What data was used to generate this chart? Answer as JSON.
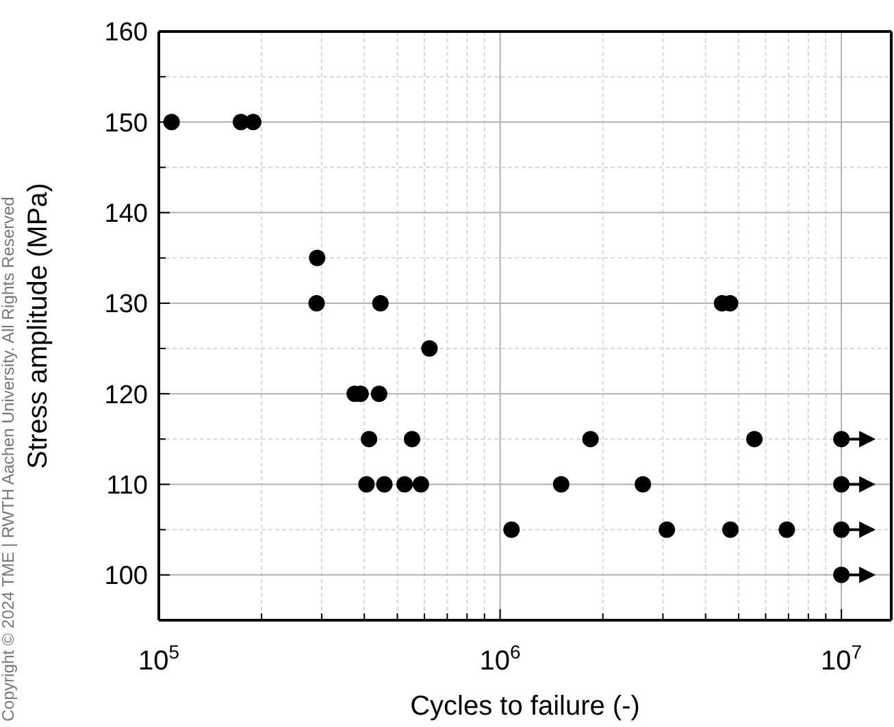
{
  "chart_data": {
    "type": "scatter",
    "xlabel": "Cycles to failure (-)",
    "ylabel": "Stress amplitude (MPa)",
    "annotations": [
      "Copyright © 2024 TME | RWTH Aachen University. All Rights Reserved"
    ],
    "log": "x",
    "grid": true,
    "marker": "circle",
    "xlim": [
      100000,
      14000000
    ],
    "ylim": [
      95,
      160
    ],
    "xticks": [
      {
        "value": 100000,
        "label": "10$^{5}$"
      },
      {
        "value": 200000,
        "label": null
      },
      {
        "value": 300000,
        "label": null
      },
      {
        "value": 400000,
        "label": null
      },
      {
        "value": 500000,
        "label": null
      },
      {
        "value": 600000,
        "label": null
      },
      {
        "value": 700000,
        "label": null
      },
      {
        "value": 800000,
        "label": null
      },
      {
        "value": 900000,
        "label": null
      },
      {
        "value": 1000000,
        "label": "10$^{6}$"
      },
      {
        "value": 2000000,
        "label": null
      },
      {
        "value": 3000000,
        "label": null
      },
      {
        "value": 4000000,
        "label": null
      },
      {
        "value": 5000000,
        "label": null
      },
      {
        "value": 6000000,
        "label": null
      },
      {
        "value": 7000000,
        "label": null
      },
      {
        "value": 8000000,
        "label": null
      },
      {
        "value": 9000000,
        "label": null
      },
      {
        "value": 10000000,
        "label": "10$^{7}$"
      }
    ],
    "yticks": [
      100,
      {
        "value": 105,
        "label": null
      },
      110,
      {
        "value": 115,
        "label": null
      },
      120,
      {
        "value": 125,
        "label": null
      },
      130,
      {
        "value": 135,
        "label": null
      },
      140,
      {
        "value": 145,
        "label": null
      },
      150,
      {
        "value": 155,
        "label": null
      },
      160
    ],
    "series": [
      {
        "color": "#000000",
        "x": [
          109000,
          174000,
          189000,
          291000,
          290000,
          446000,
          621000,
          375000,
          390000,
          442000,
          413000,
          552000,
          406000,
          458000,
          525000,
          586000,
          1080000,
          1840000,
          5560000,
          1510000,
          2620000,
          3080000,
          4730000,
          6920000,
          4470000,
          4720000
        ],
        "values": [
          150,
          150,
          150,
          135,
          130,
          130,
          125,
          120,
          120,
          120,
          115,
          115,
          110,
          110,
          110,
          110,
          105,
          115,
          115,
          110,
          110,
          105,
          105,
          105,
          130,
          130
        ]
      },
      {
        "color": "#000000",
        "x": [
          10000000,
          10000000,
          10000000,
          10000000
        ],
        "values": [
          115,
          110,
          105,
          100
        ]
      }
    ]
  }
}
